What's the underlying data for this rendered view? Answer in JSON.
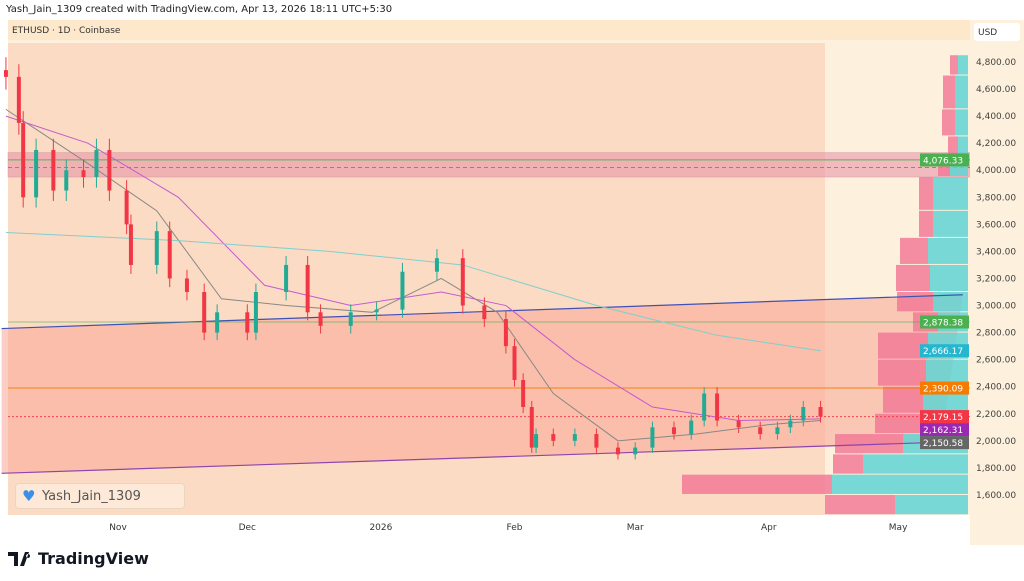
{
  "header": {
    "credit": "Yash_Jain_1309 created with TradingView.com, Apr 13, 2026 18:11 UTC+5:30",
    "symbol": "ETHUSD · 1D · Coinbase"
  },
  "watermark": {
    "text": "Yash_Jain_1309",
    "icon": "heart-icon"
  },
  "footer": {
    "logo_text": "TradingView"
  },
  "colors": {
    "up": "#22ab94",
    "down": "#f23645",
    "bg_zone": "#fbd6be",
    "channel": "#f7a596",
    "band": "#e88fa6",
    "profile_up": "#5fd3d4",
    "profile_down": "#f27a98"
  },
  "chart_data": {
    "type": "candlestick",
    "title": "ETHUSD · 1D · Coinbase",
    "currency": "USD",
    "ylim": [
      1450,
      4950
    ],
    "y_ticks": [
      1600,
      1800,
      2000,
      2200,
      2400,
      2600,
      2800,
      3000,
      3200,
      3400,
      3600,
      3800,
      4000,
      4200,
      4400,
      4600,
      4800
    ],
    "y_tick_labels": [
      "1,600.00",
      "1,800.00",
      "2,000.00",
      "2,200.00",
      "2,400.00",
      "2,600.00",
      "2,800.00",
      "3,000.00",
      "3,200.00",
      "3,400.00",
      "3,600.00",
      "3,800.00",
      "4,000.00",
      "4,200.00",
      "4,400.00",
      "4,600.00",
      "4,800.00"
    ],
    "x_ticks": [
      {
        "date": "2025-11-01",
        "label": "Nov"
      },
      {
        "date": "2025-12-01",
        "label": "Dec"
      },
      {
        "date": "2026-01-01",
        "label": "2026"
      },
      {
        "date": "2026-02-01",
        "label": "Feb"
      },
      {
        "date": "2026-03-01",
        "label": "Mar"
      },
      {
        "date": "2026-04-01",
        "label": "Apr"
      },
      {
        "date": "2026-05-01",
        "label": "May"
      }
    ],
    "closes": [
      [
        "2025-10-06",
        4690
      ],
      [
        "2025-10-09",
        4350
      ],
      [
        "2025-10-10",
        3800
      ],
      [
        "2025-10-13",
        4150
      ],
      [
        "2025-10-17",
        3850
      ],
      [
        "2025-10-20",
        4000
      ],
      [
        "2025-10-24",
        3950
      ],
      [
        "2025-10-27",
        4150
      ],
      [
        "2025-10-30",
        3850
      ],
      [
        "2025-11-03",
        3600
      ],
      [
        "2025-11-04",
        3300
      ],
      [
        "2025-11-10",
        3550
      ],
      [
        "2025-11-13",
        3200
      ],
      [
        "2025-11-17",
        3100
      ],
      [
        "2025-11-21",
        2800
      ],
      [
        "2025-11-24",
        2950
      ],
      [
        "2025-12-01",
        2800
      ],
      [
        "2025-12-03",
        3100
      ],
      [
        "2025-12-10",
        3300
      ],
      [
        "2025-12-15",
        2950
      ],
      [
        "2025-12-18",
        2850
      ],
      [
        "2025-12-25",
        2950
      ],
      [
        "2025-12-31",
        2970
      ],
      [
        "2026-01-06",
        3250
      ],
      [
        "2026-01-14",
        3350
      ],
      [
        "2026-01-20",
        3000
      ],
      [
        "2026-01-25",
        2900
      ],
      [
        "2026-01-30",
        2700
      ],
      [
        "2026-02-01",
        2450
      ],
      [
        "2026-02-03",
        2250
      ],
      [
        "2026-02-05",
        1950
      ],
      [
        "2026-02-06",
        2050
      ],
      [
        "2026-02-10",
        2000
      ],
      [
        "2026-02-15",
        2050
      ],
      [
        "2026-02-20",
        1950
      ],
      [
        "2026-02-25",
        1900
      ],
      [
        "2026-03-01",
        1950
      ],
      [
        "2026-03-05",
        2100
      ],
      [
        "2026-03-10",
        2050
      ],
      [
        "2026-03-14",
        2150
      ],
      [
        "2026-03-17",
        2350
      ],
      [
        "2026-03-20",
        2150
      ],
      [
        "2026-03-25",
        2100
      ],
      [
        "2026-03-30",
        2050
      ],
      [
        "2026-04-03",
        2100
      ],
      [
        "2026-04-06",
        2150
      ],
      [
        "2026-04-09",
        2250
      ],
      [
        "2026-04-13",
        2179
      ]
    ],
    "moving_averages": [
      {
        "color": "#888888",
        "label": "2,150.58",
        "points": [
          [
            "2025-10-06",
            4450
          ],
          [
            "2025-10-25",
            4050
          ],
          [
            "2025-11-10",
            3700
          ],
          [
            "2025-11-25",
            3050
          ],
          [
            "2025-12-10",
            3000
          ],
          [
            "2025-12-30",
            2950
          ],
          [
            "2026-01-15",
            3200
          ],
          [
            "2026-01-28",
            2950
          ],
          [
            "2026-02-10",
            2350
          ],
          [
            "2026-02-25",
            2000
          ],
          [
            "2026-03-15",
            2050
          ],
          [
            "2026-04-01",
            2120
          ],
          [
            "2026-04-13",
            2150
          ]
        ]
      },
      {
        "color": "#c45bd0",
        "label": "2,162.31",
        "points": [
          [
            "2025-10-06",
            4400
          ],
          [
            "2025-10-25",
            4200
          ],
          [
            "2025-11-15",
            3800
          ],
          [
            "2025-12-05",
            3150
          ],
          [
            "2025-12-25",
            3000
          ],
          [
            "2026-01-15",
            3100
          ],
          [
            "2026-01-30",
            3000
          ],
          [
            "2026-02-15",
            2600
          ],
          [
            "2026-03-05",
            2250
          ],
          [
            "2026-03-25",
            2150
          ],
          [
            "2026-04-13",
            2162
          ]
        ]
      },
      {
        "color": "#7fcfcf",
        "label": "2,666.17",
        "points": [
          [
            "2025-10-06",
            3540
          ],
          [
            "2025-11-15",
            3480
          ],
          [
            "2025-12-20",
            3400
          ],
          [
            "2026-01-20",
            3300
          ],
          [
            "2026-02-20",
            3000
          ],
          [
            "2026-03-20",
            2780
          ],
          [
            "2026-04-13",
            2666
          ]
        ]
      }
    ],
    "levels": [
      {
        "price": 4076.33,
        "label": "4,076.33",
        "color": "#4caf50"
      },
      {
        "price": 2878.38,
        "label": "2,878.38",
        "color": "#4caf50"
      },
      {
        "price": 2390.09,
        "label": "2,390.09",
        "color": "#f57c00"
      },
      {
        "price": 2179.15,
        "label": "2,179.15",
        "color": "#f23645"
      }
    ],
    "band": [
      3950,
      4130
    ],
    "trendlines": [
      {
        "color": "#3f51b5",
        "from": [
          "2025-10-05",
          2830
        ],
        "to": [
          "2026-05-16",
          3080
        ]
      },
      {
        "color": "#8e44ad",
        "from": [
          "2025-10-05",
          1760
        ],
        "to": [
          "2026-05-11",
          1990
        ]
      }
    ],
    "volume_profile": [
      [
        4700,
        4850,
        10,
        8
      ],
      [
        4450,
        4700,
        13,
        12
      ],
      [
        4250,
        4450,
        13,
        13
      ],
      [
        4100,
        4250,
        10,
        10
      ],
      [
        3950,
        4100,
        18,
        12
      ],
      [
        3700,
        3950,
        35,
        14
      ],
      [
        3500,
        3700,
        35,
        14
      ],
      [
        3300,
        3500,
        40,
        28
      ],
      [
        3100,
        3300,
        38,
        34
      ],
      [
        2950,
        3100,
        35,
        36
      ],
      [
        2800,
        2950,
        30,
        25
      ],
      [
        2600,
        2800,
        40,
        50
      ],
      [
        2400,
        2600,
        42,
        48
      ],
      [
        2200,
        2400,
        45,
        40
      ],
      [
        2050,
        2200,
        48,
        45
      ],
      [
        1900,
        2050,
        65,
        68
      ],
      [
        1750,
        1900,
        105,
        30
      ],
      [
        1600,
        1750,
        136,
        150
      ],
      [
        1450,
        1600,
        73,
        70
      ]
    ]
  }
}
